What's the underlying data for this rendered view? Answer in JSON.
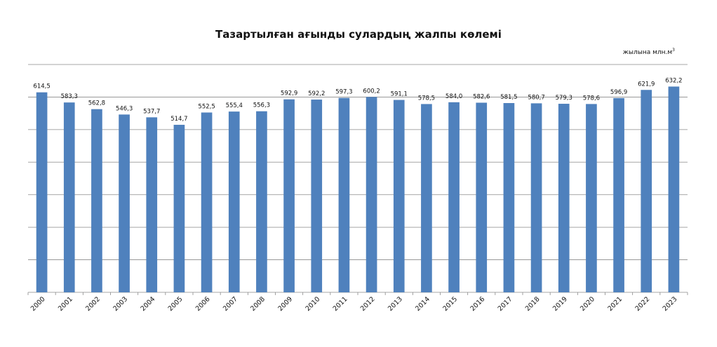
{
  "chart_data": {
    "type": "bar",
    "title": "Тазартылған ағынды сулардың жалпы көлемі",
    "unit_label": "жылына млн.м",
    "unit_superscript": "3",
    "categories": [
      "2000",
      "2001",
      "2002",
      "2003",
      "2004",
      "2005",
      "2006",
      "2007",
      "2008",
      "2009",
      "2010",
      "2011",
      "2012",
      "2013",
      "2014",
      "2015",
      "2016",
      "2017",
      "2018",
      "2019",
      "2020",
      "2021",
      "2022",
      "2023"
    ],
    "values": [
      614.5,
      583.3,
      562.8,
      546.3,
      537.7,
      514.7,
      552.5,
      555.4,
      556.3,
      592.9,
      592.2,
      597.3,
      600.2,
      591.1,
      578.5,
      584.0,
      582.6,
      581.5,
      580.7,
      579.3,
      578.6,
      596.9,
      621.9,
      632.2
    ],
    "value_labels": [
      "614,5",
      "583,3",
      "562,8",
      "546,3",
      "537,7",
      "514,7",
      "552,5",
      "555,4",
      "556,3",
      "592,9",
      "592,2",
      "597,3",
      "600,2",
      "591,1",
      "578,5",
      "584,0",
      "582,6",
      "581,5",
      "580,7",
      "579,3",
      "578,6",
      "596,9",
      "621,9",
      "632,2"
    ],
    "ylim": [
      0,
      700
    ],
    "grid": true,
    "legend": "none",
    "bar_color": "#4f81bd"
  }
}
